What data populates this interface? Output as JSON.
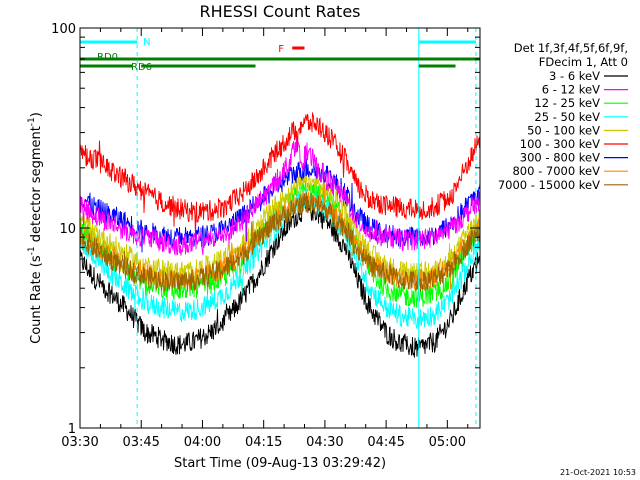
{
  "chart_data": {
    "type": "line",
    "title": "RHESSI Count Rates",
    "xlabel": "Start Time (09-Aug-13 03:29:42)",
    "ylabel_main": "Count Rate (s",
    "ylabel_exp1": "-1",
    "ylabel_mid": " detector segment",
    "ylabel_exp2": "-1",
    "ylabel_end": ")",
    "ylog": true,
    "ylim": [
      1,
      100
    ],
    "xlim_min": [
      210,
      308
    ],
    "x_ticks": [
      {
        "t": 210,
        "label": "03:30"
      },
      {
        "t": 225,
        "label": "03:45"
      },
      {
        "t": 240,
        "label": "04:00"
      },
      {
        "t": 255,
        "label": "04:15"
      },
      {
        "t": 270,
        "label": "04:30"
      },
      {
        "t": 285,
        "label": "04:45"
      },
      {
        "t": 300,
        "label": "05:00"
      }
    ],
    "y_ticks": [
      {
        "v": 1,
        "label": "1"
      },
      {
        "v": 10,
        "label": "10"
      },
      {
        "v": 100,
        "label": "100"
      }
    ],
    "legend_header": [
      "Det 1f,3f,4f,5f,6f,9f,",
      "FDecim 1, Att 0"
    ],
    "legend_placement": "right",
    "series": [
      {
        "name": "3 - 6 keV",
        "color": "#000000",
        "points": [
          [
            210,
            7.0
          ],
          [
            214,
            5.5
          ],
          [
            218,
            4.6
          ],
          [
            222,
            3.8
          ],
          [
            226,
            3.0
          ],
          [
            230,
            2.8
          ],
          [
            234,
            2.6
          ],
          [
            238,
            2.7
          ],
          [
            242,
            3.0
          ],
          [
            246,
            3.5
          ],
          [
            250,
            4.5
          ],
          [
            254,
            6.0
          ],
          [
            258,
            8.5
          ],
          [
            262,
            11.0
          ],
          [
            265,
            12.5
          ],
          [
            268,
            12.0
          ],
          [
            271,
            10.5
          ],
          [
            275,
            8.0
          ],
          [
            278,
            5.5
          ],
          [
            281,
            4.0
          ],
          [
            285,
            3.0
          ],
          [
            289,
            2.6
          ],
          [
            293,
            2.5
          ],
          [
            297,
            2.7
          ],
          [
            301,
            3.5
          ],
          [
            305,
            5.5
          ],
          [
            308,
            7.0
          ]
        ]
      },
      {
        "name": "6 - 12 keV",
        "color": "#ff00ff",
        "points": [
          [
            210,
            13.0
          ],
          [
            214,
            11.5
          ],
          [
            218,
            10.5
          ],
          [
            222,
            9.5
          ],
          [
            226,
            9.0
          ],
          [
            230,
            8.5
          ],
          [
            234,
            8.2
          ],
          [
            238,
            8.3
          ],
          [
            242,
            8.8
          ],
          [
            246,
            9.5
          ],
          [
            250,
            11.0
          ],
          [
            254,
            13.5
          ],
          [
            258,
            17.0
          ],
          [
            261,
            21.0
          ],
          [
            263,
            27.0
          ],
          [
            264,
            22.0
          ],
          [
            266,
            24.0
          ],
          [
            268,
            20.0
          ],
          [
            271,
            17.0
          ],
          [
            275,
            14.0
          ],
          [
            278,
            11.0
          ],
          [
            281,
            9.5
          ],
          [
            285,
            9.0
          ],
          [
            289,
            8.7
          ],
          [
            293,
            8.8
          ],
          [
            297,
            9.0
          ],
          [
            301,
            10.0
          ],
          [
            305,
            12.0
          ],
          [
            308,
            14.0
          ]
        ]
      },
      {
        "name": "12 - 25 keV",
        "color": "#00ff00",
        "points": [
          [
            210,
            10.0
          ],
          [
            214,
            8.5
          ],
          [
            218,
            7.0
          ],
          [
            222,
            6.0
          ],
          [
            226,
            5.2
          ],
          [
            230,
            5.0
          ],
          [
            234,
            4.9
          ],
          [
            238,
            5.0
          ],
          [
            242,
            5.3
          ],
          [
            246,
            5.8
          ],
          [
            250,
            7.0
          ],
          [
            254,
            9.0
          ],
          [
            258,
            11.5
          ],
          [
            262,
            14.0
          ],
          [
            265,
            15.5
          ],
          [
            268,
            15.0
          ],
          [
            271,
            13.5
          ],
          [
            275,
            11.0
          ],
          [
            278,
            8.0
          ],
          [
            281,
            6.0
          ],
          [
            285,
            5.0
          ],
          [
            289,
            4.6
          ],
          [
            293,
            4.5
          ],
          [
            297,
            4.7
          ],
          [
            301,
            5.5
          ],
          [
            305,
            8.0
          ],
          [
            308,
            10.0
          ]
        ]
      },
      {
        "name": "25 - 50 keV",
        "color": "#00ffff",
        "points": [
          [
            210,
            8.5
          ],
          [
            214,
            7.0
          ],
          [
            218,
            5.8
          ],
          [
            222,
            4.9
          ],
          [
            226,
            4.2
          ],
          [
            230,
            4.0
          ],
          [
            234,
            3.8
          ],
          [
            238,
            3.9
          ],
          [
            242,
            4.2
          ],
          [
            246,
            4.8
          ],
          [
            250,
            6.0
          ],
          [
            254,
            7.8
          ],
          [
            258,
            10.0
          ],
          [
            262,
            12.5
          ],
          [
            265,
            14.0
          ],
          [
            268,
            13.5
          ],
          [
            271,
            12.0
          ],
          [
            275,
            9.5
          ],
          [
            278,
            6.8
          ],
          [
            281,
            5.0
          ],
          [
            285,
            4.0
          ],
          [
            289,
            3.6
          ],
          [
            293,
            3.5
          ],
          [
            297,
            3.7
          ],
          [
            301,
            4.5
          ],
          [
            305,
            6.5
          ],
          [
            308,
            8.5
          ]
        ]
      },
      {
        "name": "50 - 100 keV",
        "color": "#cccc00",
        "points": [
          [
            210,
            11.0
          ],
          [
            214,
            9.5
          ],
          [
            218,
            8.2
          ],
          [
            222,
            7.2
          ],
          [
            226,
            6.5
          ],
          [
            230,
            6.2
          ],
          [
            234,
            6.0
          ],
          [
            238,
            6.1
          ],
          [
            242,
            6.5
          ],
          [
            246,
            7.2
          ],
          [
            250,
            8.5
          ],
          [
            254,
            10.5
          ],
          [
            258,
            13.0
          ],
          [
            262,
            15.5
          ],
          [
            265,
            17.0
          ],
          [
            268,
            16.5
          ],
          [
            271,
            15.0
          ],
          [
            275,
            12.5
          ],
          [
            278,
            9.5
          ],
          [
            281,
            7.5
          ],
          [
            285,
            6.5
          ],
          [
            289,
            6.0
          ],
          [
            293,
            5.9
          ],
          [
            297,
            6.1
          ],
          [
            301,
            7.0
          ],
          [
            305,
            9.5
          ],
          [
            308,
            11.0
          ]
        ]
      },
      {
        "name": "100 - 300 keV",
        "color": "#ff0000",
        "points": [
          [
            210,
            24.0
          ],
          [
            214,
            22.0
          ],
          [
            218,
            19.0
          ],
          [
            222,
            17.0
          ],
          [
            226,
            15.0
          ],
          [
            230,
            13.5
          ],
          [
            234,
            12.5
          ],
          [
            238,
            12.0
          ],
          [
            242,
            12.2
          ],
          [
            246,
            13.0
          ],
          [
            250,
            15.0
          ],
          [
            254,
            18.5
          ],
          [
            258,
            24.0
          ],
          [
            262,
            30.0
          ],
          [
            265,
            34.0
          ],
          [
            268,
            33.0
          ],
          [
            271,
            29.0
          ],
          [
            275,
            22.0
          ],
          [
            278,
            16.0
          ],
          [
            281,
            14.0
          ],
          [
            285,
            13.0
          ],
          [
            289,
            12.5
          ],
          [
            293,
            12.3
          ],
          [
            297,
            12.8
          ],
          [
            301,
            14.5
          ],
          [
            305,
            21.0
          ],
          [
            308,
            28.0
          ]
        ]
      },
      {
        "name": "300 - 800 keV",
        "color": "#0000ff",
        "points": [
          [
            210,
            14.5
          ],
          [
            214,
            12.5
          ],
          [
            218,
            11.5
          ],
          [
            222,
            10.5
          ],
          [
            226,
            9.5
          ],
          [
            230,
            9.2
          ],
          [
            234,
            9.0
          ],
          [
            238,
            9.0
          ],
          [
            242,
            9.3
          ],
          [
            246,
            10.0
          ],
          [
            250,
            11.5
          ],
          [
            254,
            13.5
          ],
          [
            258,
            16.0
          ],
          [
            262,
            18.5
          ],
          [
            265,
            20.0
          ],
          [
            268,
            19.5
          ],
          [
            271,
            18.0
          ],
          [
            275,
            15.0
          ],
          [
            278,
            11.5
          ],
          [
            281,
            10.0
          ],
          [
            285,
            9.3
          ],
          [
            289,
            9.0
          ],
          [
            293,
            9.0
          ],
          [
            297,
            9.2
          ],
          [
            301,
            10.5
          ],
          [
            305,
            13.0
          ],
          [
            308,
            15.0
          ]
        ]
      },
      {
        "name": "800 - 7000 keV",
        "color": "#ff8800",
        "points": [
          [
            210,
            9.5
          ],
          [
            214,
            8.2
          ],
          [
            218,
            7.2
          ],
          [
            222,
            6.4
          ],
          [
            226,
            5.9
          ],
          [
            230,
            5.6
          ],
          [
            234,
            5.5
          ],
          [
            238,
            5.6
          ],
          [
            242,
            5.9
          ],
          [
            246,
            6.5
          ],
          [
            250,
            7.6
          ],
          [
            254,
            9.2
          ],
          [
            258,
            11.0
          ],
          [
            262,
            12.8
          ],
          [
            265,
            13.8
          ],
          [
            268,
            13.4
          ],
          [
            271,
            12.2
          ],
          [
            275,
            10.2
          ],
          [
            278,
            8.0
          ],
          [
            281,
            6.6
          ],
          [
            285,
            6.0
          ],
          [
            289,
            5.6
          ],
          [
            293,
            5.5
          ],
          [
            297,
            5.7
          ],
          [
            301,
            6.5
          ],
          [
            305,
            8.5
          ],
          [
            308,
            10.0
          ]
        ]
      },
      {
        "name": "7000 - 15000 keV",
        "color": "#996600",
        "points": [
          [
            210,
            9.0
          ],
          [
            214,
            7.8
          ],
          [
            218,
            6.9
          ],
          [
            222,
            6.2
          ],
          [
            226,
            5.7
          ],
          [
            230,
            5.5
          ],
          [
            234,
            5.4
          ],
          [
            238,
            5.5
          ],
          [
            242,
            5.8
          ],
          [
            246,
            6.4
          ],
          [
            250,
            7.4
          ],
          [
            254,
            9.0
          ],
          [
            258,
            10.8
          ],
          [
            262,
            12.5
          ],
          [
            265,
            13.5
          ],
          [
            268,
            13.1
          ],
          [
            271,
            12.0
          ],
          [
            275,
            10.0
          ],
          [
            278,
            7.8
          ],
          [
            281,
            6.5
          ],
          [
            285,
            5.9
          ],
          [
            289,
            5.5
          ],
          [
            293,
            5.4
          ],
          [
            297,
            5.6
          ],
          [
            301,
            6.4
          ],
          [
            305,
            8.3
          ],
          [
            308,
            9.8
          ]
        ]
      }
    ],
    "annotations": {
      "n_label": "N",
      "rd0_label": "RD0",
      "rd6_label": "RD6",
      "f_label": "F",
      "n_bars": [
        [
          210,
          224
        ],
        [
          293,
          307
        ]
      ],
      "green_bars_upper": [
        [
          210,
          224
        ],
        [
          224,
          253
        ],
        [
          253,
          277
        ],
        [
          277,
          303
        ],
        [
          303,
          308
        ]
      ],
      "green_bars_lower": [
        [
          210,
          223
        ],
        [
          225,
          253
        ],
        [
          293,
          302
        ]
      ],
      "f_bar": [
        262,
        265
      ],
      "vlines_solid": [
        210,
        293
      ],
      "vlines_dashed": [
        224,
        307
      ]
    },
    "colors": {
      "n_bar": "#00ffff",
      "rd_bar": "#007f00",
      "f_bar": "#ff0000",
      "vline": "#00ffff"
    }
  },
  "footer": {
    "timestamp": "21-Oct-2021 10:53"
  }
}
